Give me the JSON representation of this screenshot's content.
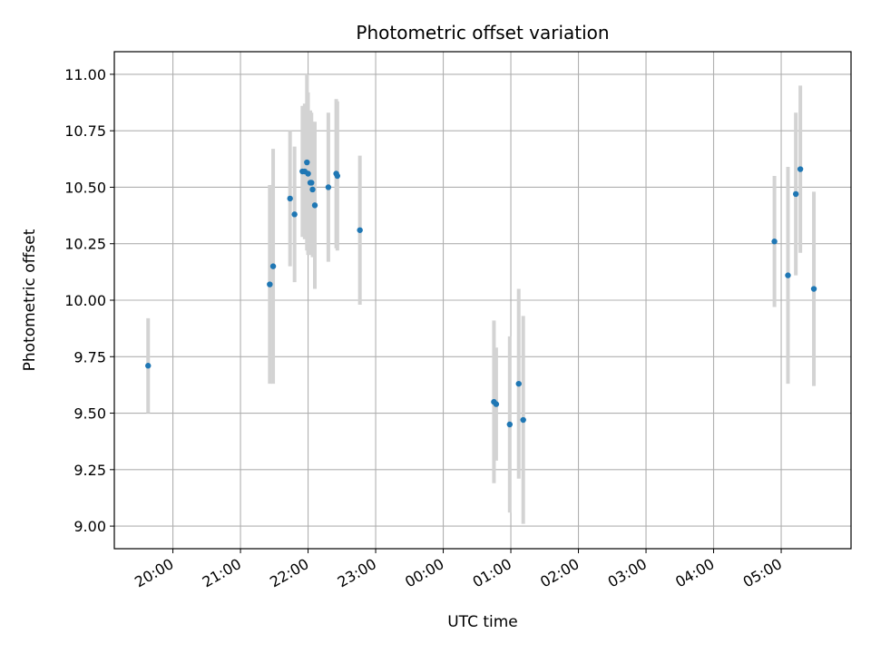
{
  "chart_data": {
    "type": "scatter",
    "title": "Photometric offset variation",
    "xlabel": "UTC time",
    "ylabel": "Photometric offset",
    "x_scale": "time",
    "xlim": [
      "19:08",
      "06:02"
    ],
    "ylim": [
      8.9,
      11.1
    ],
    "x_ticks": [
      "20:00",
      "21:00",
      "22:00",
      "23:00",
      "00:00",
      "01:00",
      "02:00",
      "03:00",
      "04:00",
      "05:00"
    ],
    "y_ticks": [
      "9.00",
      "9.25",
      "9.50",
      "9.75",
      "10.00",
      "10.25",
      "10.50",
      "10.75",
      "11.00"
    ],
    "grid": true,
    "legend": "none",
    "colors": {
      "point": "#1f77b4",
      "errorbar": "#d3d3d3",
      "grid": "#b0b0b0"
    },
    "series": [
      {
        "points": [
          {
            "x": "19:38",
            "y": 9.71,
            "yerr": 0.21
          },
          {
            "x": "21:26",
            "y": 10.07,
            "yerr": 0.44
          },
          {
            "x": "21:29",
            "y": 10.15,
            "yerr": 0.52
          },
          {
            "x": "21:44",
            "y": 10.45,
            "yerr": 0.3
          },
          {
            "x": "21:48",
            "y": 10.38,
            "yerr": 0.3
          },
          {
            "x": "21:55",
            "y": 10.57,
            "yerr": 0.29
          },
          {
            "x": "21:57",
            "y": 10.57,
            "yerr": 0.3
          },
          {
            "x": "21:59",
            "y": 10.61,
            "yerr": 0.39
          },
          {
            "x": "22:00",
            "y": 10.56,
            "yerr": 0.36
          },
          {
            "x": "22:02",
            "y": 10.52,
            "yerr": 0.32
          },
          {
            "x": "22:03",
            "y": 10.52,
            "yerr": 0.31
          },
          {
            "x": "22:04",
            "y": 10.49,
            "yerr": 0.3
          },
          {
            "x": "22:06",
            "y": 10.42,
            "yerr": 0.37
          },
          {
            "x": "22:18",
            "y": 10.5,
            "yerr": 0.33
          },
          {
            "x": "22:25",
            "y": 10.56,
            "yerr": 0.33
          },
          {
            "x": "22:26",
            "y": 10.55,
            "yerr": 0.33
          },
          {
            "x": "22:46",
            "y": 10.31,
            "yerr": 0.33
          },
          {
            "x": "00:45",
            "y": 9.55,
            "yerr": 0.36
          },
          {
            "x": "00:47",
            "y": 9.54,
            "yerr": 0.25
          },
          {
            "x": "00:59",
            "y": 9.45,
            "yerr": 0.39
          },
          {
            "x": "01:07",
            "y": 9.63,
            "yerr": 0.42
          },
          {
            "x": "01:11",
            "y": 9.47,
            "yerr": 0.46
          },
          {
            "x": "04:54",
            "y": 10.26,
            "yerr": 0.29
          },
          {
            "x": "05:06",
            "y": 10.11,
            "yerr": 0.48
          },
          {
            "x": "05:13",
            "y": 10.47,
            "yerr": 0.36
          },
          {
            "x": "05:17",
            "y": 10.58,
            "yerr": 0.37
          },
          {
            "x": "05:29",
            "y": 10.05,
            "yerr": 0.43
          }
        ]
      }
    ]
  }
}
